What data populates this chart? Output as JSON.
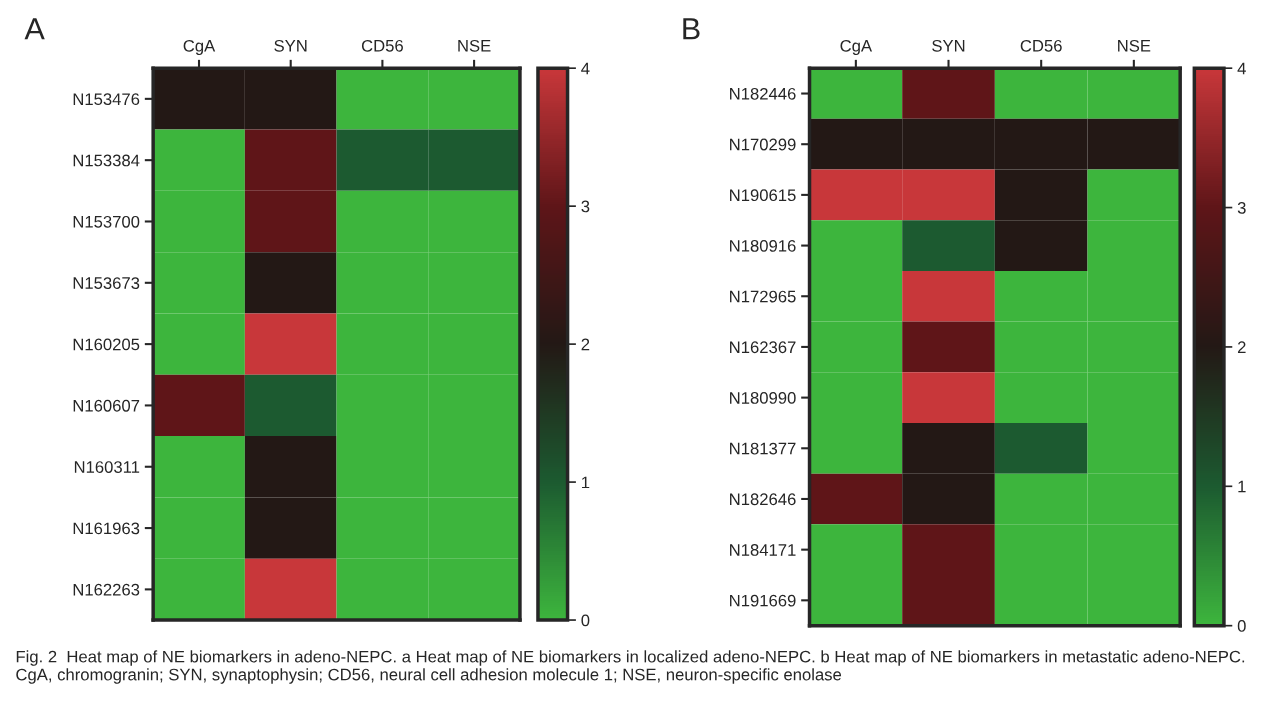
{
  "chart_data": [
    {
      "type": "heatmap",
      "title": "A",
      "categories": [
        "CgA",
        "SYN",
        "CD56",
        "NSE"
      ],
      "y_categories": [
        "N153476",
        "N153384",
        "N153700",
        "N153673",
        "N160205",
        "N160607",
        "N160311",
        "N161963",
        "N162263"
      ],
      "cells": [
        [
          2,
          2,
          0,
          0
        ],
        [
          0,
          3,
          1,
          1
        ],
        [
          0,
          3,
          0,
          0
        ],
        [
          0,
          2,
          0,
          0
        ],
        [
          0,
          4,
          0,
          0
        ],
        [
          3,
          1,
          0,
          0
        ],
        [
          0,
          2,
          0,
          0
        ],
        [
          0,
          2,
          0,
          0
        ],
        [
          0,
          4,
          0,
          0
        ]
      ],
      "colors": [
        "#3db53d",
        "#1c5a30",
        "#231815",
        "#5e1518",
        "#c8373a"
      ],
      "clim": [
        0,
        4
      ],
      "cticks": [
        0,
        1,
        2,
        3,
        4
      ],
      "annotations": [
        "Fig. 2  Heat map of NE biomarkers in adeno-NEPC. a Heat map of NE biomarkers in localized adeno-NEPC. b Heat map of NE biomarkers in metastatic adeno-NEPC. CgA, chromogranin; SYN, synaptophysin; CD56, neural cell adhesion molecule 1; NSE, neuron-specific enolase"
      ]
    },
    {
      "type": "heatmap",
      "title": "B",
      "categories": [
        "CgA",
        "SYN",
        "CD56",
        "NSE"
      ],
      "y_categories": [
        "N182446",
        "N170299",
        "N190615",
        "N180916",
        "N172965",
        "N162367",
        "N180990",
        "N181377",
        "N182646",
        "N184171",
        "N191669"
      ],
      "cells": [
        [
          0,
          3,
          0,
          0
        ],
        [
          2,
          2,
          2,
          2
        ],
        [
          4,
          4,
          2,
          0
        ],
        [
          0,
          1,
          2,
          0
        ],
        [
          0,
          4,
          0,
          0
        ],
        [
          0,
          3,
          0,
          0
        ],
        [
          0,
          4,
          0,
          0
        ],
        [
          0,
          2,
          1,
          0
        ],
        [
          3,
          2,
          0,
          0
        ],
        [
          0,
          3,
          0,
          0
        ],
        [
          0,
          3,
          0,
          0
        ]
      ],
      "colors": [
        "#3db53d",
        "#1c5a30",
        "#231815",
        "#5e1518",
        "#c8373a"
      ],
      "clim": [
        0,
        4
      ],
      "cticks": [
        0,
        1,
        2,
        3,
        4
      ]
    }
  ]
}
